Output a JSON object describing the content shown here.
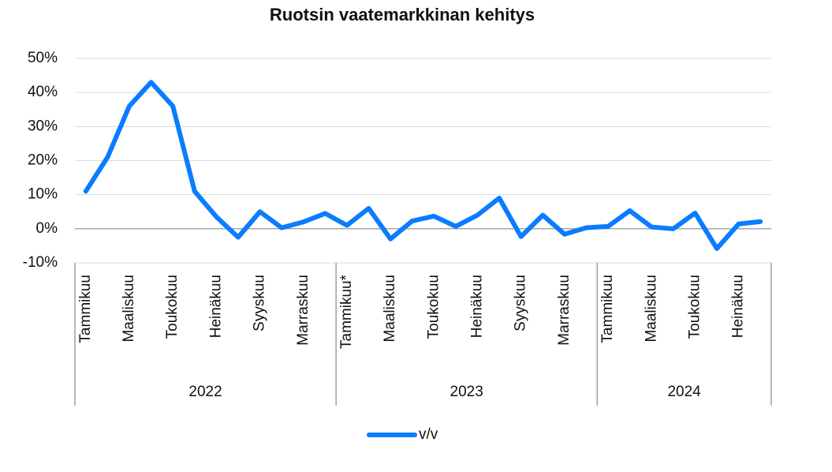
{
  "chart_data": {
    "type": "line",
    "title": "Ruotsin vaatemarkkinan kehitys",
    "groups": [
      {
        "label": "2022",
        "categories": [
          "Tammikuu",
          null,
          "Maaliskuu",
          null,
          "Toukokuu",
          null,
          "Heinäkuu",
          null,
          "Syyskuu",
          null,
          "Marraskuu",
          null
        ]
      },
      {
        "label": "2023",
        "categories": [
          "Tammikuu*",
          null,
          "Maaliskuu",
          null,
          "Toukokuu",
          null,
          "Heinäkuu",
          null,
          "Syyskuu",
          null,
          "Marraskuu",
          null
        ]
      },
      {
        "label": "2024",
        "categories": [
          "Tammikuu",
          null,
          "Maaliskuu",
          null,
          "Toukokuu",
          null,
          "Heinäkuu",
          null
        ]
      }
    ],
    "series": [
      {
        "name": "v/v",
        "color": "#0a7cff",
        "values": [
          11,
          21,
          36,
          43,
          36,
          11,
          3.5,
          -2.5,
          5,
          0.3,
          2,
          4.5,
          1,
          6,
          -3,
          2.3,
          3.7,
          0.7,
          4,
          9,
          -2.3,
          4,
          -1.6,
          0.3,
          0.7,
          5.3,
          0.5,
          0,
          4.6,
          -5.8,
          1.4,
          2.1
        ]
      }
    ],
    "ylim": [
      -10,
      50
    ],
    "yticks": [
      {
        "value": -10,
        "label": "-10%"
      },
      {
        "value": 0,
        "label": "0%"
      },
      {
        "value": 10,
        "label": "10%"
      },
      {
        "value": 20,
        "label": "20%"
      },
      {
        "value": 30,
        "label": "30%"
      },
      {
        "value": 40,
        "label": "40%"
      },
      {
        "value": 50,
        "label": "50%"
      }
    ],
    "grid": true
  }
}
